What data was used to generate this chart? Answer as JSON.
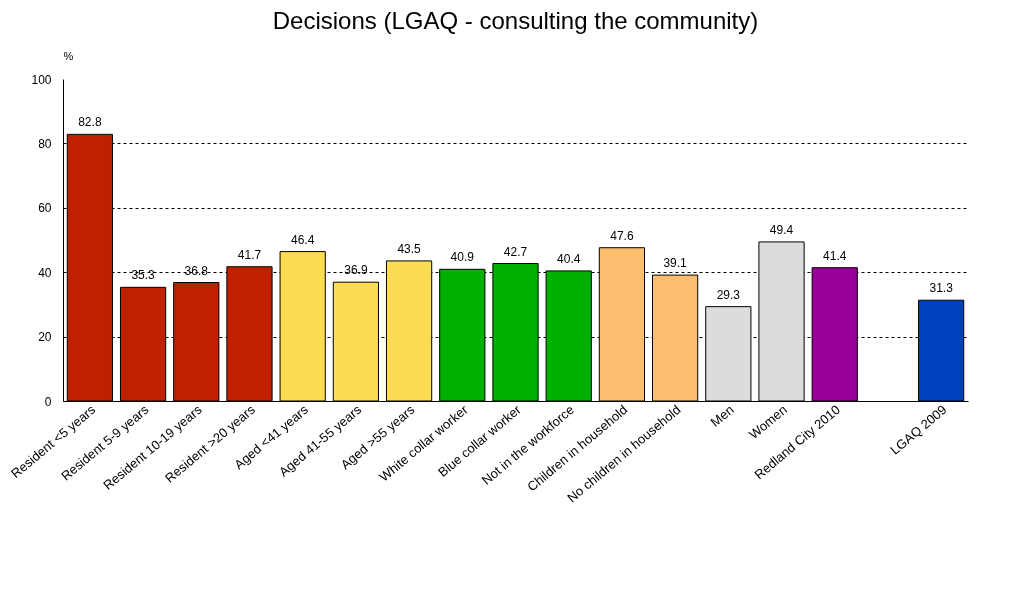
{
  "chart_data": {
    "type": "bar",
    "title": "Decisions (LGAQ - consulting the community)",
    "ylabel": "%",
    "categories": [
      "Resident <5 years",
      "Resident 5-9 years",
      "Resident 10-19 years",
      "Resident >20 years",
      "Aged <41 years",
      "Aged 41-55 years",
      "Aged >55 years",
      "White collar worker",
      "Blue collar worker",
      "Not in the workforce",
      "Children in household",
      "No children in household",
      "Men",
      "Women",
      "Redland City 2010",
      null,
      "LGAQ 2009"
    ],
    "values": [
      82.8,
      35.3,
      36.8,
      41.7,
      46.4,
      36.9,
      43.5,
      40.9,
      42.7,
      40.4,
      47.6,
      39.1,
      29.3,
      49.4,
      41.4,
      null,
      31.3
    ],
    "colors": [
      "#bf2000",
      "#bf2000",
      "#bf2000",
      "#bf2000",
      "#fcdc50",
      "#fcdc50",
      "#fcdc50",
      "#00b000",
      "#00b000",
      "#00b000",
      "#fdbf6f",
      "#fdbf6f",
      "#dcdcdc",
      "#dcdcdc",
      "#990099",
      "#ffffff",
      "#0040c0"
    ],
    "data_labels": true,
    "ylim": [
      0,
      100
    ],
    "yticks": [
      0,
      20,
      40,
      60,
      80,
      100
    ],
    "grid": "y"
  }
}
